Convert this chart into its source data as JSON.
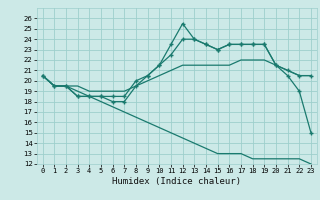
{
  "xlabel": "Humidex (Indice chaleur)",
  "ylabel": "",
  "xlim": [
    -0.5,
    23.5
  ],
  "ylim": [
    12,
    27
  ],
  "yticks": [
    12,
    13,
    14,
    15,
    16,
    17,
    18,
    19,
    20,
    21,
    22,
    23,
    24,
    25,
    26
  ],
  "xticks": [
    0,
    1,
    2,
    3,
    4,
    5,
    6,
    7,
    8,
    9,
    10,
    11,
    12,
    13,
    14,
    15,
    16,
    17,
    18,
    19,
    20,
    21,
    22,
    23
  ],
  "bg_color": "#cce9e7",
  "grid_color": "#9ecfcc",
  "line_color": "#1a7a6e",
  "series": {
    "line1": [
      20.5,
      19.5,
      19.5,
      18.5,
      18.5,
      18.5,
      18.0,
      18.0,
      19.5,
      20.5,
      21.5,
      23.5,
      25.5,
      24.0,
      23.5,
      23.0,
      23.5,
      23.5,
      23.5,
      23.5,
      21.5,
      20.5,
      19.0,
      15.0
    ],
    "line2": [
      20.5,
      19.5,
      19.5,
      18.5,
      18.5,
      18.5,
      18.5,
      18.5,
      20.0,
      20.5,
      21.5,
      22.5,
      24.0,
      24.0,
      23.5,
      23.0,
      23.5,
      23.5,
      23.5,
      23.5,
      21.5,
      21.0,
      20.5,
      20.5
    ],
    "line3": [
      20.5,
      19.5,
      19.5,
      19.5,
      19.0,
      19.0,
      19.0,
      19.0,
      19.5,
      20.0,
      20.5,
      21.0,
      21.5,
      21.5,
      21.5,
      21.5,
      21.5,
      22.0,
      22.0,
      22.0,
      21.5,
      21.0,
      20.5,
      20.5
    ],
    "line4": [
      20.5,
      19.5,
      19.5,
      19.0,
      18.5,
      18.0,
      17.5,
      17.0,
      16.5,
      16.0,
      15.5,
      15.0,
      14.5,
      14.0,
      13.5,
      13.0,
      13.0,
      13.0,
      12.5,
      12.5,
      12.5,
      12.5,
      12.5,
      12.0
    ]
  },
  "marker": "+",
  "markersize": 3,
  "linewidth": 0.9,
  "tick_fontsize": 5,
  "label_fontsize": 6.5
}
